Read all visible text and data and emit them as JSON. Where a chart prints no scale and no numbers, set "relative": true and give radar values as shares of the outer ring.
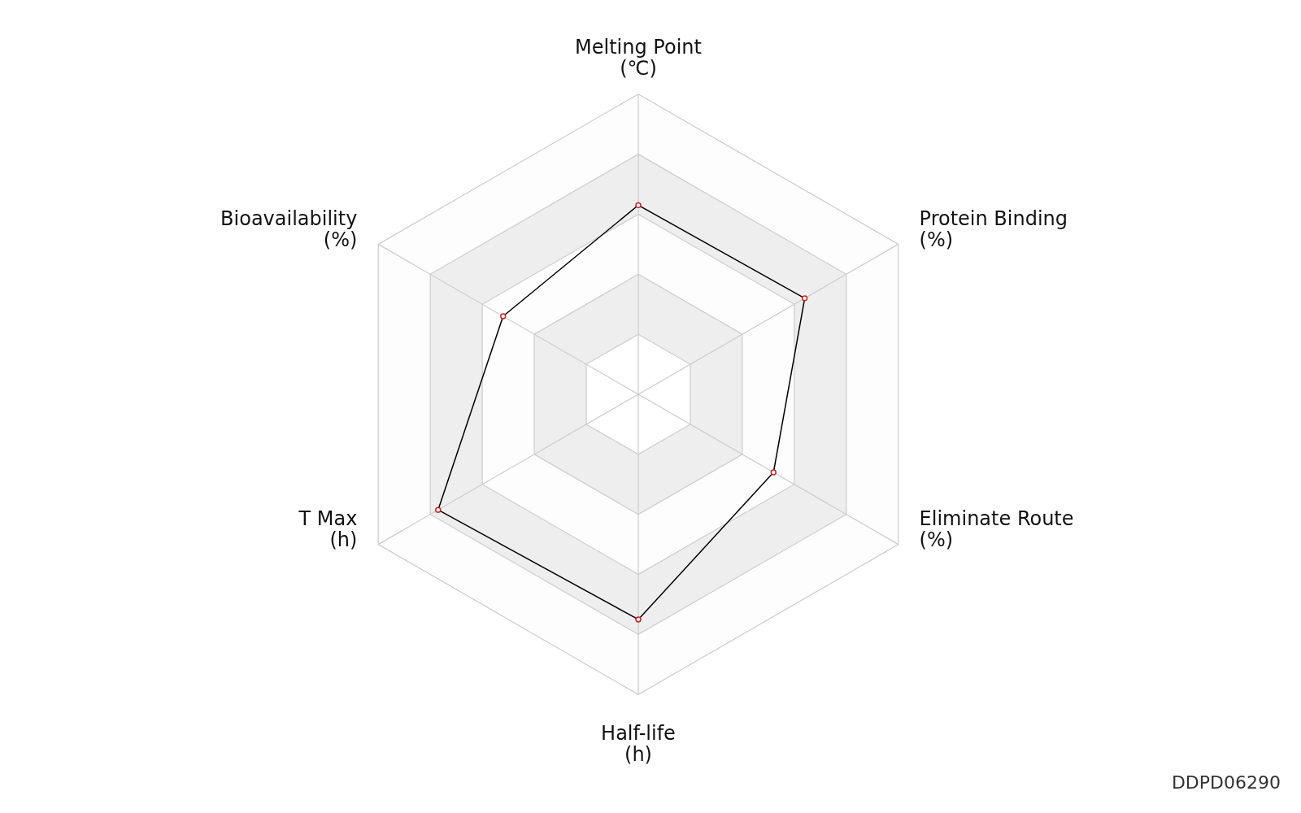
{
  "chart_data": {
    "type": "radar",
    "relative": true,
    "grid": true,
    "marker": "circle",
    "categories": [
      "Melting Point\n(℃)",
      "Protein Binding\n(%)",
      "Eliminate Route\n(%)",
      "Half-life\n(h)",
      "T Max\n(h)",
      "Bioavailability\n(%)"
    ],
    "series": [
      {
        "color": "#000000",
        "values": [
          0.63,
          0.64,
          0.52,
          0.75,
          0.77,
          0.52
        ]
      }
    ],
    "annotations": [
      "DDPD06290"
    ]
  }
}
